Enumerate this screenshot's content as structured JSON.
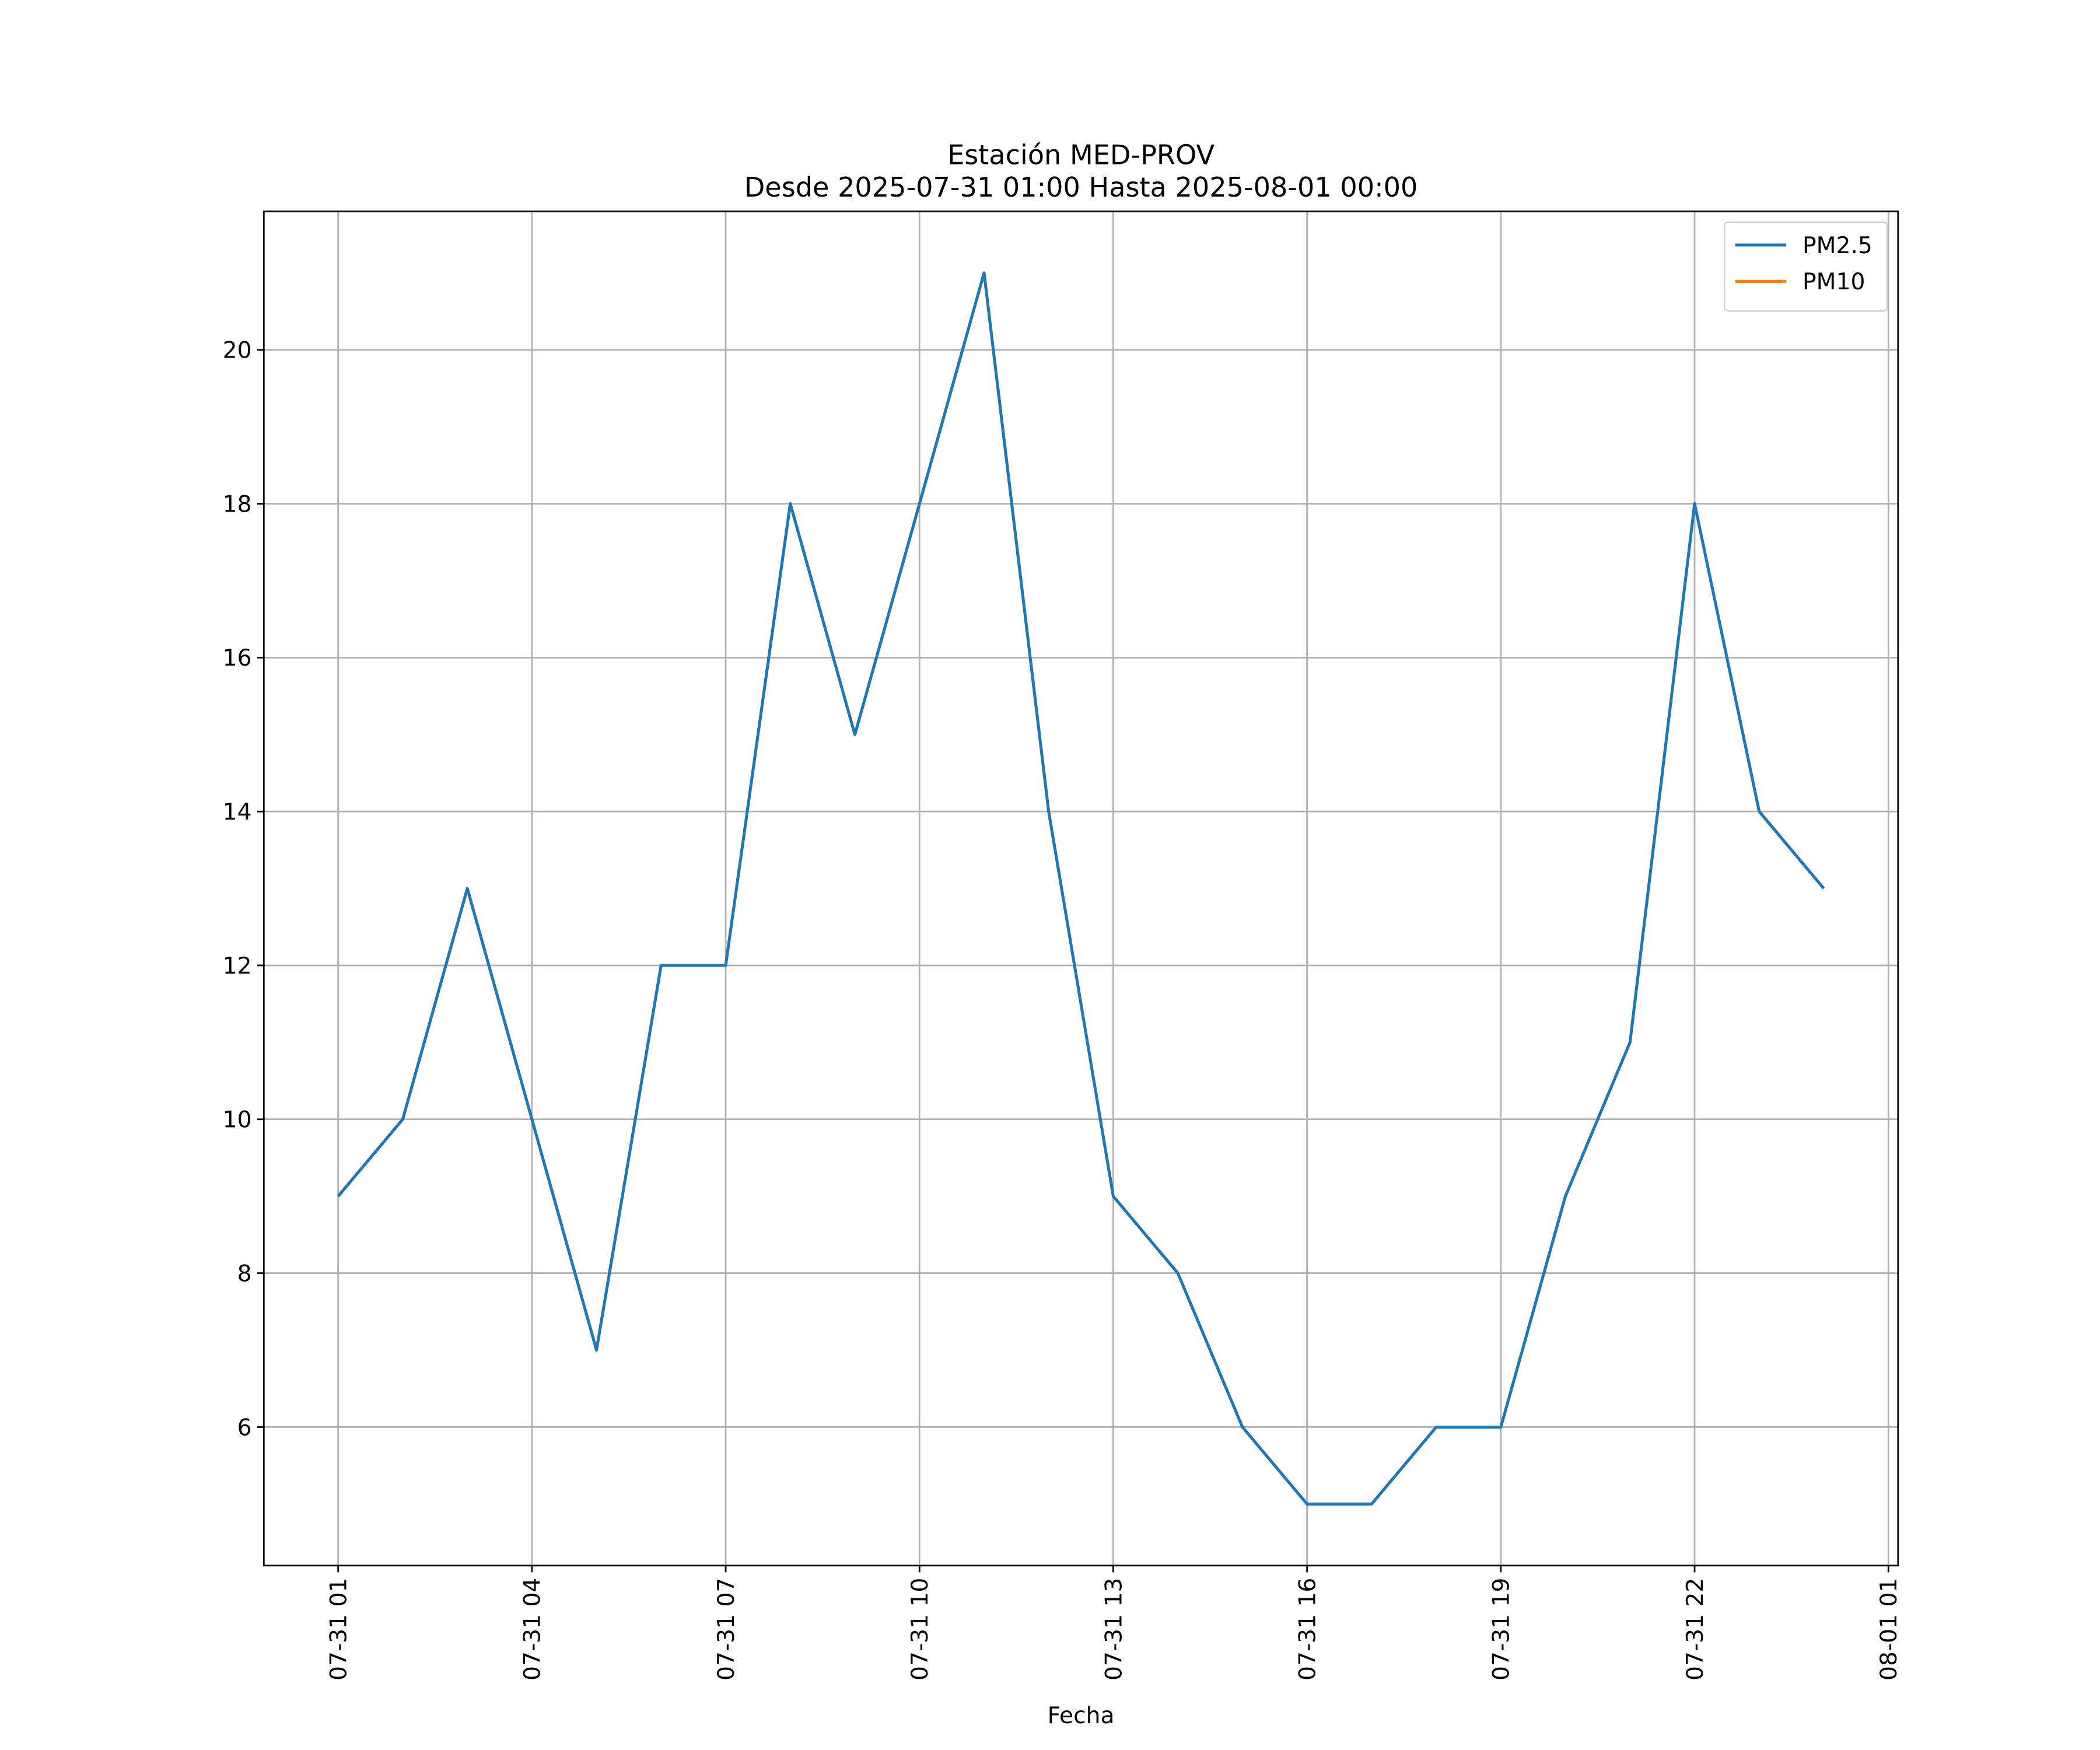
{
  "chart_data": {
    "type": "line",
    "title": "Estación MED-PROV",
    "subtitle": "Desde 2025-07-31 01:00 Hasta 2025-08-01 00:00",
    "xlabel": "Fecha",
    "x": [
      1,
      2,
      3,
      4,
      5,
      6,
      7,
      8,
      9,
      10,
      11,
      12,
      13,
      14,
      15,
      16,
      17,
      18,
      19,
      20,
      21,
      22,
      23,
      24
    ],
    "series": [
      {
        "name": "PM2.5",
        "color": "#1f77b4",
        "values": [
          9,
          10,
          13,
          10,
          7,
          12,
          12,
          18,
          15,
          18,
          21,
          14,
          9,
          8,
          6,
          5,
          5,
          6,
          6,
          9,
          11,
          18,
          14,
          13
        ]
      },
      {
        "name": "PM10",
        "color": "#ff7f0e",
        "values": [
          null,
          null,
          null,
          null,
          null,
          null,
          null,
          null,
          null,
          null,
          null,
          null,
          null,
          null,
          null,
          null,
          null,
          null,
          null,
          null,
          null,
          null,
          null,
          null
        ]
      }
    ],
    "xlim": [
      -0.15,
      25.15
    ],
    "xticks": [
      {
        "value": 1,
        "label": "07-31 01"
      },
      {
        "value": 4,
        "label": "07-31 04"
      },
      {
        "value": 7,
        "label": "07-31 07"
      },
      {
        "value": 10,
        "label": "07-31 10"
      },
      {
        "value": 13,
        "label": "07-31 13"
      },
      {
        "value": 16,
        "label": "07-31 16"
      },
      {
        "value": 19,
        "label": "07-31 19"
      },
      {
        "value": 22,
        "label": "07-31 22"
      },
      {
        "value": 25,
        "label": "08-01 01"
      }
    ],
    "ylim": [
      4.2,
      21.8
    ],
    "yticks": [
      6,
      8,
      10,
      12,
      14,
      16,
      18,
      20
    ],
    "grid": true,
    "legend": "upper right"
  }
}
